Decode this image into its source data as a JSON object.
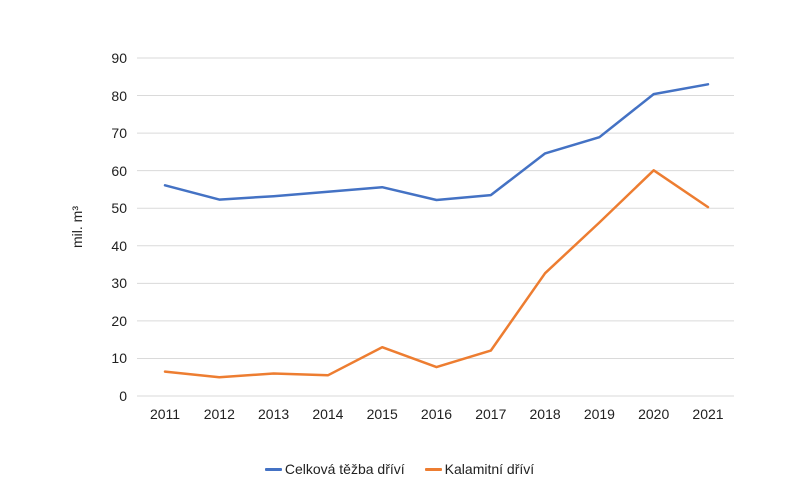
{
  "chart_data": {
    "type": "line",
    "title": "",
    "xlabel": "",
    "ylabel": "mil. m³",
    "categories": [
      "2011",
      "2012",
      "2013",
      "2014",
      "2015",
      "2016",
      "2017",
      "2018",
      "2019",
      "2020",
      "2021"
    ],
    "series": [
      {
        "name": "Celková těžba dříví",
        "color": "#4472C4",
        "values": [
          56.1,
          52.3,
          53.2,
          54.4,
          55.6,
          52.2,
          53.5,
          64.6,
          68.9,
          80.4,
          83.0
        ]
      },
      {
        "name": "Kalamitní dříví",
        "color": "#ED7D31",
        "values": [
          6.5,
          5.0,
          6.0,
          5.5,
          13.0,
          7.7,
          12.1,
          32.7,
          46.2,
          60.1,
          50.3
        ]
      }
    ],
    "ylim": [
      0,
      90
    ],
    "ytick_step": 10,
    "grid": true,
    "grid_color": "#DADADA",
    "text_color": "#212121",
    "legend_position": "bottom"
  }
}
